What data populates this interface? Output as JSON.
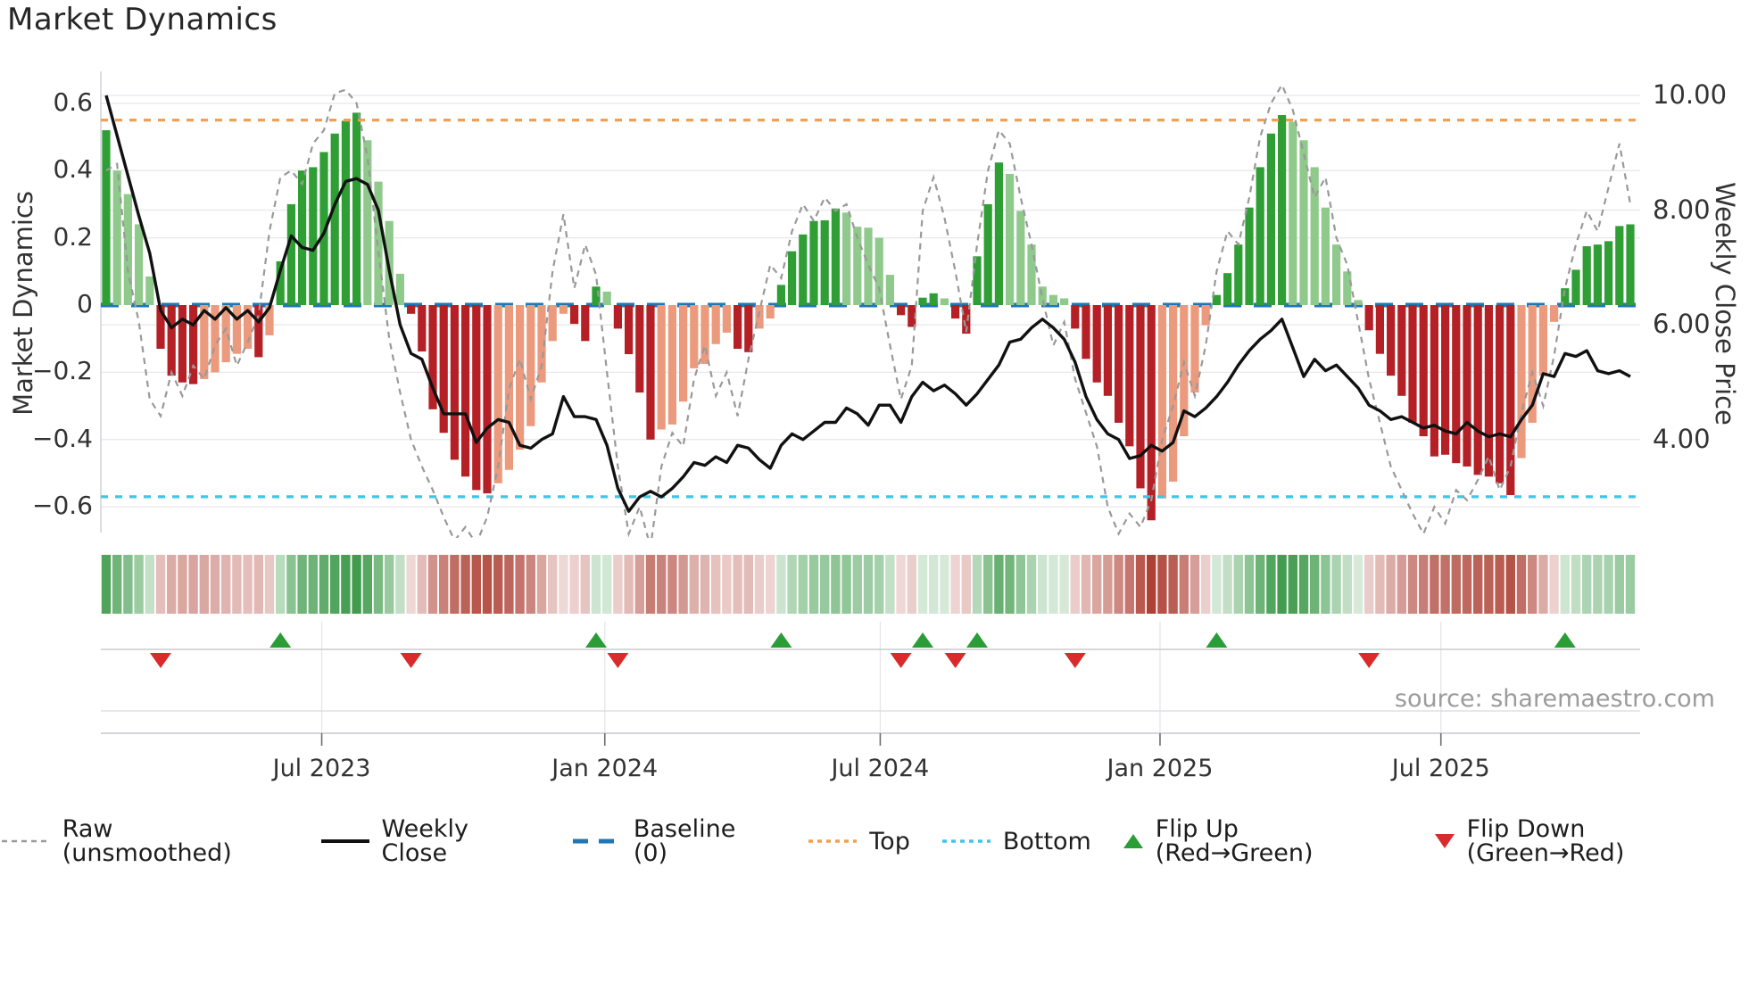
{
  "title": "Market Dynamics",
  "source": "source: sharemaestro.com",
  "left_axis": {
    "label": "Market Dynamics",
    "tick_labels": [
      "0.6",
      "0.4",
      "0.2",
      "0",
      "−0.2",
      "−0.4",
      "−0.6"
    ],
    "tick_values": [
      0.6,
      0.4,
      0.2,
      0,
      -0.2,
      -0.4,
      -0.6
    ]
  },
  "right_axis": {
    "label": "Weekly Close Price",
    "tick_labels": [
      "10.00",
      "8.00",
      "6.00",
      "4.00"
    ],
    "tick_values": [
      10,
      8,
      6,
      4
    ]
  },
  "x_axis": {
    "tick_labels": [
      "Jul 2023",
      "Jan 2024",
      "Jul 2024",
      "Jan 2025",
      "Jul 2025"
    ],
    "tick_weeks": [
      19.8,
      45.8,
      71.1,
      96.8,
      122.6
    ]
  },
  "legend": {
    "items": [
      {
        "label": "Raw (unsmoothed)",
        "type": "dashed-gray-line"
      },
      {
        "label": "Weekly Close",
        "type": "solid-black-line"
      },
      {
        "label": "Baseline (0)",
        "type": "dashed-blue-line"
      },
      {
        "label": "Top",
        "type": "dotted-orange-line"
      },
      {
        "label": "Bottom",
        "type": "dotted-cyan-line"
      },
      {
        "label": "Flip Up (Red→Green)",
        "type": "green-up-triangle"
      },
      {
        "label": "Flip Down (Green→Red)",
        "type": "red-down-triangle"
      }
    ]
  },
  "colors": {
    "bar_dark_green": "#2f9e35",
    "bar_light_green": "#8fc98b",
    "bar_dark_red": "#b42025",
    "bar_salmon": "#eb9a7d",
    "baseline": "#2077b4",
    "top_line": "#f0a050",
    "bottom_line": "#3fc6e6",
    "raw_line": "#999999",
    "close_line": "#111111",
    "flip_up": "#2a9d36",
    "flip_down": "#d92b2b",
    "grid": "#e8e8ee",
    "panel_line": "#cccccc",
    "heat_green_base": "#1f8a2e",
    "heat_red_base": "#a83226"
  },
  "chart_data": {
    "type": "combo",
    "title": "Market Dynamics",
    "frequency": "weekly",
    "n_points": 141,
    "oscillator_ylim": [
      -0.675,
      0.695
    ],
    "price_axis_ticks": [
      4,
      6,
      8,
      10
    ],
    "baseline": 0,
    "top_threshold": 0.55,
    "bottom_threshold": -0.57,
    "legend_position": "bottom",
    "grid": true,
    "oscillator": {
      "values": [
        0.52,
        0.4,
        0.33,
        0.24,
        0.085,
        -0.13,
        -0.21,
        -0.23,
        -0.235,
        -0.22,
        -0.2,
        -0.17,
        -0.145,
        -0.13,
        -0.155,
        -0.09,
        0.13,
        0.3,
        0.4,
        0.41,
        0.455,
        0.51,
        0.548,
        0.572,
        0.49,
        0.367,
        0.25,
        0.093,
        -0.026,
        -0.138,
        -0.31,
        -0.38,
        -0.46,
        -0.51,
        -0.55,
        -0.56,
        -0.53,
        -0.49,
        -0.43,
        -0.36,
        -0.23,
        -0.107,
        -0.026,
        -0.056,
        -0.107,
        0.055,
        0.04,
        -0.07,
        -0.146,
        -0.26,
        -0.4,
        -0.37,
        -0.355,
        -0.287,
        -0.188,
        -0.175,
        -0.116,
        -0.082,
        -0.13,
        -0.14,
        -0.07,
        -0.04,
        0.06,
        0.16,
        0.21,
        0.25,
        0.252,
        0.287,
        0.275,
        0.233,
        0.23,
        0.2,
        0.09,
        -0.03,
        -0.065,
        0.022,
        0.035,
        0.02,
        -0.04,
        -0.085,
        0.145,
        0.3,
        0.424,
        0.39,
        0.28,
        0.18,
        0.055,
        0.03,
        0.02,
        -0.07,
        -0.16,
        -0.23,
        -0.27,
        -0.35,
        -0.42,
        -0.545,
        -0.64,
        -0.575,
        -0.525,
        -0.39,
        -0.26,
        -0.06,
        0.03,
        0.095,
        0.18,
        0.29,
        0.41,
        0.51,
        0.565,
        0.545,
        0.49,
        0.41,
        0.29,
        0.18,
        0.1,
        0.015,
        -0.075,
        -0.145,
        -0.21,
        -0.27,
        -0.35,
        -0.39,
        -0.45,
        -0.445,
        -0.47,
        -0.48,
        -0.505,
        -0.51,
        -0.53,
        -0.565,
        -0.455,
        -0.35,
        -0.21,
        -0.05,
        0.05,
        0.105,
        0.175,
        0.18,
        0.19,
        0.235,
        0.24
      ],
      "shades": [
        "D",
        "L",
        "L",
        "L",
        "L",
        "R",
        "R",
        "R",
        "R",
        "S",
        "S",
        "S",
        "S",
        "S",
        "R",
        "S",
        "D",
        "D",
        "D",
        "D",
        "D",
        "D",
        "D",
        "D",
        "L",
        "L",
        "L",
        "L",
        "R",
        "R",
        "R",
        "R",
        "R",
        "R",
        "R",
        "R",
        "S",
        "S",
        "S",
        "S",
        "S",
        "S",
        "S",
        "R",
        "R",
        "D",
        "L",
        "R",
        "R",
        "R",
        "R",
        "S",
        "S",
        "S",
        "S",
        "S",
        "S",
        "S",
        "R",
        "R",
        "S",
        "S",
        "D",
        "D",
        "D",
        "D",
        "D",
        "D",
        "L",
        "L",
        "L",
        "L",
        "L",
        "R",
        "R",
        "D",
        "D",
        "L",
        "R",
        "R",
        "D",
        "D",
        "D",
        "L",
        "L",
        "L",
        "L",
        "L",
        "L",
        "R",
        "R",
        "R",
        "R",
        "R",
        "R",
        "R",
        "R",
        "S",
        "S",
        "S",
        "S",
        "S",
        "D",
        "D",
        "D",
        "D",
        "D",
        "D",
        "D",
        "L",
        "L",
        "L",
        "L",
        "L",
        "L",
        "L",
        "R",
        "R",
        "R",
        "R",
        "R",
        "R",
        "R",
        "R",
        "R",
        "R",
        "R",
        "R",
        "R",
        "R",
        "S",
        "S",
        "S",
        "S",
        "D",
        "D",
        "D",
        "D",
        "D",
        "D",
        "D"
      ]
    },
    "weekly_close": [
      10.0,
      9.3,
      8.6,
      7.9,
      7.25,
      6.25,
      5.95,
      6.1,
      6.0,
      6.25,
      6.1,
      6.3,
      6.1,
      6.25,
      6.05,
      6.3,
      6.95,
      7.55,
      7.35,
      7.3,
      7.6,
      8.1,
      8.5,
      8.55,
      8.45,
      8.0,
      6.95,
      6.0,
      5.5,
      5.4,
      4.9,
      4.45,
      4.45,
      4.45,
      3.95,
      4.2,
      4.35,
      4.3,
      3.9,
      3.85,
      4.0,
      4.1,
      4.75,
      4.4,
      4.4,
      4.35,
      3.9,
      3.15,
      2.75,
      3.0,
      3.1,
      3.0,
      3.15,
      3.35,
      3.6,
      3.55,
      3.7,
      3.6,
      3.9,
      3.85,
      3.65,
      3.5,
      3.9,
      4.1,
      4.0,
      4.15,
      4.3,
      4.3,
      4.55,
      4.45,
      4.25,
      4.6,
      4.6,
      4.3,
      4.75,
      5.0,
      4.85,
      4.95,
      4.8,
      4.6,
      4.8,
      5.05,
      5.3,
      5.7,
      5.75,
      5.95,
      6.1,
      5.95,
      5.75,
      5.35,
      4.75,
      4.35,
      4.1,
      4.0,
      3.67,
      3.72,
      3.9,
      3.8,
      3.95,
      4.5,
      4.4,
      4.55,
      4.75,
      5.0,
      5.3,
      5.55,
      5.75,
      5.9,
      6.1,
      5.6,
      5.1,
      5.4,
      5.2,
      5.3,
      5.1,
      4.9,
      4.6,
      4.5,
      4.35,
      4.4,
      4.3,
      4.2,
      4.25,
      4.15,
      4.1,
      4.3,
      4.15,
      4.05,
      4.1,
      4.05,
      4.35,
      4.6,
      5.15,
      5.1,
      5.5,
      5.45,
      5.55,
      5.2,
      5.15,
      5.2,
      5.1
    ],
    "raw": [
      0.4,
      0.42,
      0.1,
      -0.05,
      -0.28,
      -0.33,
      -0.2,
      -0.27,
      -0.18,
      -0.22,
      -0.12,
      -0.07,
      -0.18,
      -0.11,
      -0.03,
      0.22,
      0.38,
      0.4,
      0.36,
      0.48,
      0.52,
      0.63,
      0.64,
      0.6,
      0.44,
      0.16,
      -0.1,
      -0.26,
      -0.4,
      -0.48,
      -0.55,
      -0.63,
      -0.7,
      -0.66,
      -0.71,
      -0.63,
      -0.48,
      -0.25,
      -0.16,
      -0.28,
      -0.18,
      0.1,
      0.27,
      0.05,
      0.18,
      0.09,
      -0.2,
      -0.48,
      -0.68,
      -0.6,
      -0.72,
      -0.48,
      -0.38,
      -0.42,
      -0.22,
      -0.12,
      -0.27,
      -0.2,
      -0.33,
      -0.16,
      -0.02,
      0.12,
      0.08,
      0.22,
      0.3,
      0.25,
      0.32,
      0.28,
      0.3,
      0.2,
      0.12,
      0.05,
      -0.12,
      -0.28,
      -0.18,
      0.28,
      0.38,
      0.26,
      0.1,
      -0.08,
      0.18,
      0.4,
      0.52,
      0.48,
      0.32,
      0.18,
      0.02,
      -0.12,
      -0.05,
      -0.22,
      -0.32,
      -0.42,
      -0.6,
      -0.68,
      -0.62,
      -0.66,
      -0.58,
      -0.4,
      -0.3,
      -0.17,
      -0.27,
      -0.12,
      0.1,
      0.22,
      0.18,
      0.32,
      0.5,
      0.6,
      0.655,
      0.58,
      0.45,
      0.32,
      0.38,
      0.2,
      0.12,
      -0.05,
      -0.22,
      -0.35,
      -0.48,
      -0.55,
      -0.62,
      -0.68,
      -0.6,
      -0.65,
      -0.55,
      -0.58,
      -0.52,
      -0.45,
      -0.55,
      -0.48,
      -0.32,
      -0.2,
      -0.3,
      -0.15,
      0.05,
      0.18,
      0.28,
      0.22,
      0.35,
      0.48,
      0.3
    ],
    "flip_up_weeks": [
      16,
      45,
      62,
      75,
      80,
      102,
      134
    ],
    "flip_down_weeks": [
      5,
      28,
      47,
      73,
      78,
      89,
      116
    ]
  }
}
